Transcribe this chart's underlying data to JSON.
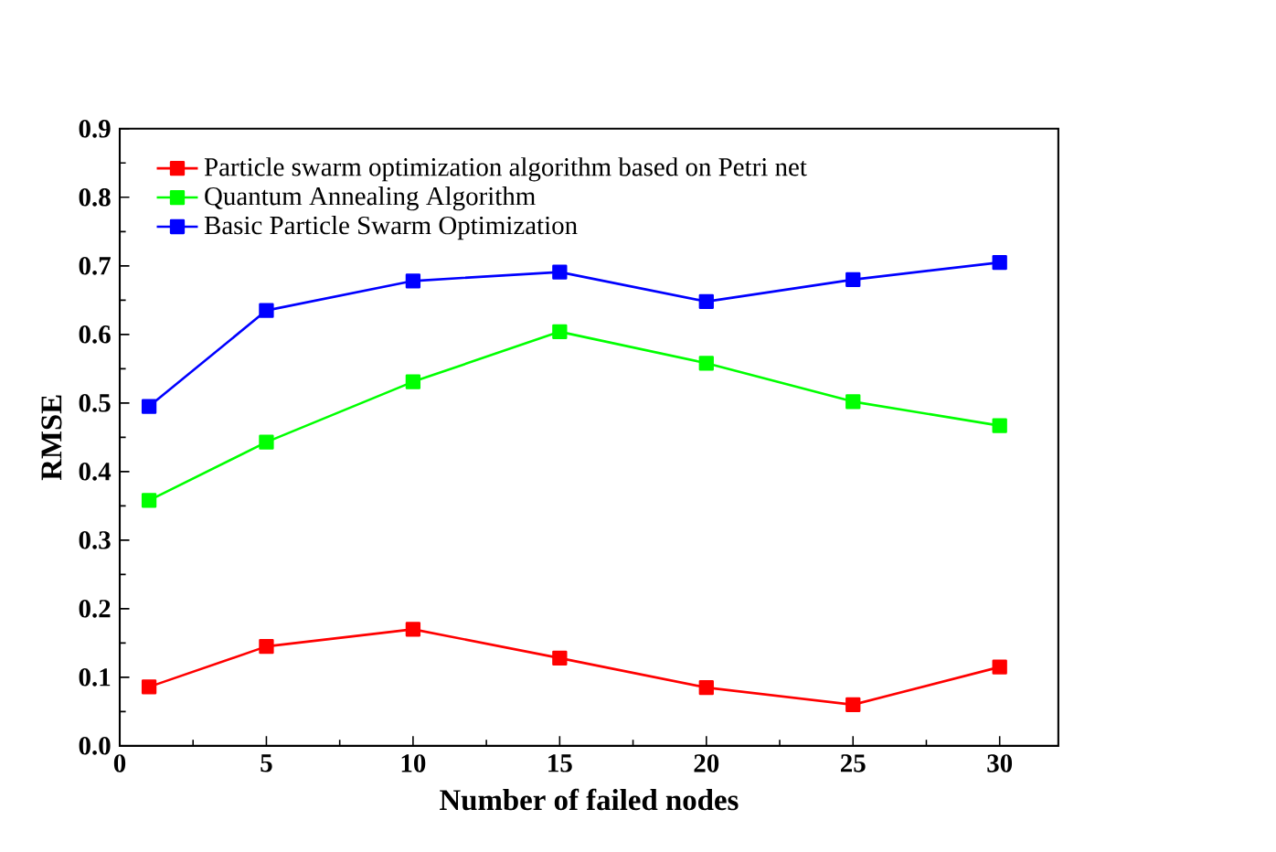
{
  "chart_data": {
    "type": "line",
    "xlabel": "Number of failed nodes",
    "ylabel": "RMSE",
    "x": [
      1,
      5,
      10,
      15,
      20,
      25,
      30
    ],
    "xlim": [
      0,
      32
    ],
    "xticks": [
      0,
      5,
      10,
      15,
      20,
      25,
      30
    ],
    "ylim": [
      0,
      0.9
    ],
    "yticks": [
      {
        "value": 0,
        "label": "0.0"
      },
      0.1,
      0.2,
      0.3,
      0.4,
      0.5,
      0.6,
      0.7,
      0.8,
      0.9
    ],
    "legend": "top left",
    "marker": "square",
    "line_style": "solid",
    "grid": false,
    "series": [
      {
        "name": "Particle swarm optimization algorithm based on Petri net",
        "color": "#ff0000",
        "values": [
          0.086,
          0.145,
          0.17,
          0.128,
          0.085,
          0.06,
          0.115
        ]
      },
      {
        "name": "Quantum Annealing Algorithm",
        "color": "#00ff00",
        "values": [
          0.358,
          0.443,
          0.531,
          0.604,
          0.558,
          0.502,
          0.467
        ]
      },
      {
        "name": "Basic Particle Swarm Optimization",
        "color": "#0000ff",
        "values": [
          0.495,
          0.635,
          0.678,
          0.691,
          0.648,
          0.68,
          0.705
        ]
      }
    ]
  }
}
